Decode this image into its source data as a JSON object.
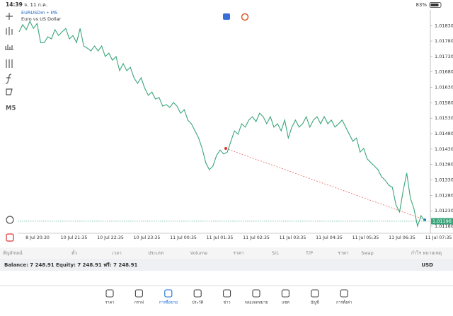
{
  "status_bar": {
    "time": "14:39",
    "date": "จ. 11 ก.ค.",
    "battery": "83%"
  },
  "toolbar": {
    "timeframe": "M5"
  },
  "chart_data": {
    "type": "line",
    "symbol": "EURUSDm • M5",
    "description": "Euro vs US Dollar",
    "x_labels": [
      "8 Jul 20:30",
      "10 Jul 21:35",
      "10 Jul 22:35",
      "10 Jul 23:35",
      "11 Jul 00:35",
      "11 Jul 01:35",
      "11 Jul 02:35",
      "11 Jul 03:35",
      "11 Jul 04:35",
      "11 Jul 05:35",
      "11 Jul 06:35",
      "11 Jul 07:35"
    ],
    "series": [
      {
        "color": "#3aa57a",
        "values": [
          1.0181,
          1.01833,
          1.01817,
          1.01844,
          1.01821,
          1.01837,
          1.01775,
          1.01775,
          1.01794,
          1.01787,
          1.01817,
          1.01798,
          1.0181,
          1.01821,
          1.01787,
          1.01798,
          1.01775,
          1.01821,
          1.01764,
          1.01757,
          1.01748,
          1.01764,
          1.01748,
          1.01764,
          1.0173,
          1.01741,
          1.01718,
          1.0173,
          1.01684,
          1.01707,
          1.01684,
          1.01695,
          1.01661,
          1.01643,
          1.01661,
          1.01627,
          1.01604,
          1.01615,
          1.01592,
          1.01597,
          1.01569,
          1.01574,
          1.01565,
          1.01581,
          1.01569,
          1.01546,
          1.01558,
          1.01524,
          1.01512,
          1.01489,
          1.01466,
          1.01432,
          1.01386,
          1.01363,
          1.01375,
          1.01409,
          1.01427,
          1.01414,
          1.0142,
          1.01455,
          1.01489,
          1.01478,
          1.01512,
          1.01501,
          1.01524,
          1.01535,
          1.01519,
          1.01546,
          1.01535,
          1.01512,
          1.01535,
          1.01501,
          1.01512,
          1.01489,
          1.01524,
          1.01466,
          1.01501,
          1.01524,
          1.01501,
          1.01512,
          1.01535,
          1.01501,
          1.01524,
          1.01535,
          1.01512,
          1.01535,
          1.01512,
          1.01524,
          1.01501,
          1.01512,
          1.01524,
          1.01501,
          1.01478,
          1.01455,
          1.01466,
          1.0142,
          1.01432,
          1.01398,
          1.01386,
          1.01375,
          1.01363,
          1.0134,
          1.01329,
          1.01313,
          1.01306,
          1.01249,
          1.01226,
          1.01295,
          1.01352,
          1.01272,
          1.01237,
          1.0118,
          1.01214,
          1.01196
        ]
      }
    ],
    "current_price": 1.01196,
    "ylim": [
      1.01157,
      1.01881
    ],
    "yticks": [
      {
        "value": 1.0183,
        "label": "1.01830"
      },
      {
        "value": 1.0178,
        "label": "1.01780"
      },
      {
        "value": 1.0173,
        "label": "1.01730"
      },
      {
        "value": 1.0168,
        "label": "1.01680"
      },
      {
        "value": 1.0163,
        "label": "1.01630"
      },
      {
        "value": 1.0158,
        "label": "1.01580"
      },
      {
        "value": 1.0153,
        "label": "1.01530"
      },
      {
        "value": 1.0148,
        "label": "1.01480"
      },
      {
        "value": 1.0143,
        "label": "1.01430"
      },
      {
        "value": 1.0138,
        "label": "1.01380"
      },
      {
        "value": 1.0133,
        "label": "1.01330"
      },
      {
        "value": 1.0128,
        "label": "1.01280"
      },
      {
        "value": 1.0123,
        "label": "1.01230"
      },
      {
        "value": 1.0118,
        "label": "1.01180"
      }
    ]
  },
  "table": {
    "headers": [
      "สัญลักษณ์",
      "ตั๋ว",
      "เวลา",
      "ประเภท",
      "Volume",
      "ราคา",
      "S/L",
      "T/P",
      "ราคา",
      "Swap",
      "กำไร",
      "หมายเหตุ"
    ],
    "balance": "Balance: 7 248.91 Equity: 7 248.91 ฟรี: 7 248.91",
    "currency": "USD"
  },
  "tabs": [
    "ราคา",
    "กราฟ",
    "การซื้อขาย",
    "ประวัติ",
    "ข่าว",
    "กล่องจดหมาย",
    "แชท",
    "บัญชี",
    "การตั้งค่า"
  ],
  "active_tab": 2
}
